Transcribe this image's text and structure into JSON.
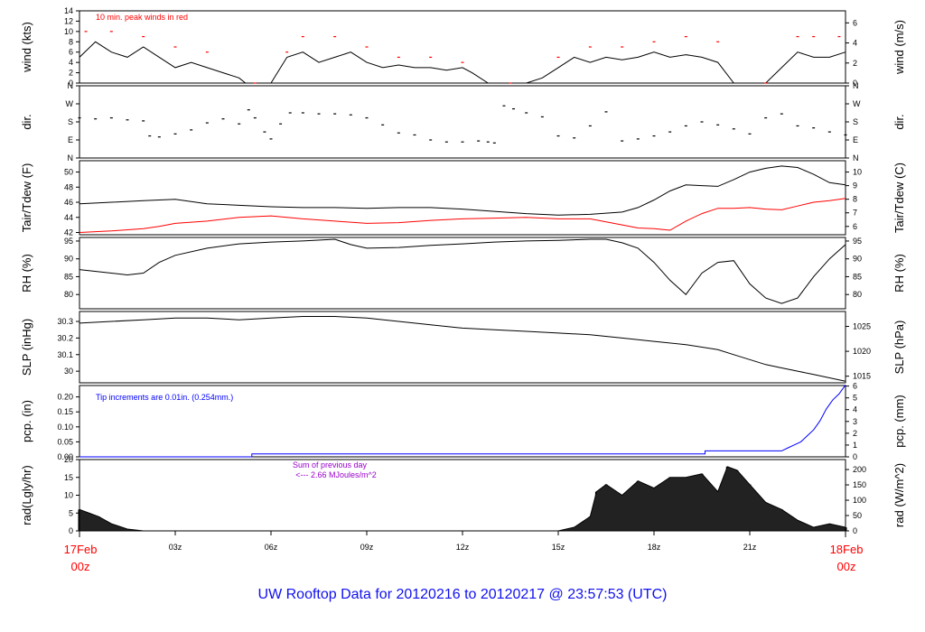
{
  "figure": {
    "title": "UW Rooftop Data for 20120216  to  20120217 @ 23:57:53  (UTC)",
    "colors": {
      "data": "#000000",
      "alt": "#ff0000",
      "precip": "#0000ff",
      "note": "#9900cc",
      "time_label": "#ff0000",
      "title": "#1010ee"
    }
  },
  "chart_data": [
    {
      "id": "wind",
      "type": "line",
      "ylabel_left": "wind (kts)",
      "ylabel_right": "wind (m/s)",
      "ylim": [
        0,
        14
      ],
      "yticks": [
        0,
        2,
        4,
        6,
        8,
        10,
        12,
        14
      ],
      "right_ticks": [
        {
          "v": 0,
          "l": "0"
        },
        {
          "v": 3.888,
          "l": "2"
        },
        {
          "v": 7.776,
          "l": "4"
        },
        {
          "v": 11.664,
          "l": "6"
        }
      ],
      "annotation": "10 min. peak winds in red",
      "series": [
        {
          "name": "wind speed",
          "color": "#000000",
          "x": [
            0,
            0.5,
            1,
            1.5,
            2,
            2.5,
            3,
            3.5,
            4,
            4.5,
            5,
            5.2,
            5.5,
            6,
            6.5,
            7,
            7.5,
            8,
            8.5,
            9,
            9.5,
            10,
            10.5,
            11,
            11.5,
            12,
            12.3,
            12.8,
            13.5,
            14,
            14.5,
            15,
            15.5,
            16,
            16.5,
            17,
            17.5,
            18,
            18.5,
            19,
            19.5,
            20,
            20.5,
            21,
            21.5,
            22,
            22.5,
            23,
            23.5,
            24
          ],
          "y": [
            5,
            8,
            6,
            5,
            7,
            5,
            3,
            4,
            3,
            2,
            1,
            0,
            0,
            0,
            5,
            6,
            4,
            5,
            6,
            4,
            3,
            3.5,
            3,
            3,
            2.5,
            3,
            2,
            0,
            0,
            0,
            1,
            3,
            5,
            4,
            5,
            4.5,
            5,
            6,
            5,
            5.5,
            5,
            4,
            0,
            0,
            0,
            3,
            6,
            5,
            5,
            6
          ]
        },
        {
          "name": "10 min. peak winds",
          "color": "#ff0000",
          "x": [
            0.2,
            1,
            2,
            3,
            4,
            5.5,
            6.5,
            7,
            8,
            9,
            10,
            11,
            12,
            13.5,
            15,
            16,
            17,
            18,
            19,
            20,
            21.5,
            22.5,
            23,
            23.8
          ],
          "y": [
            10,
            10,
            9,
            7,
            6,
            0,
            6,
            9,
            9,
            7,
            5,
            5,
            4,
            0,
            5,
            7,
            7,
            8,
            9,
            8,
            0,
            9,
            9,
            9
          ]
        }
      ]
    },
    {
      "id": "dir",
      "type": "scatter",
      "ylabel_left": "dir.",
      "ylabel_right": "dir.",
      "ylim": [
        0,
        360
      ],
      "yticks_text": [
        {
          "v": 0,
          "l": "N"
        },
        {
          "v": 90,
          "l": "E"
        },
        {
          "v": 180,
          "l": "S"
        },
        {
          "v": 270,
          "l": "W"
        },
        {
          "v": 360,
          "l": "N"
        }
      ],
      "series": [
        {
          "name": "wind direction",
          "color": "#000000",
          "x": [
            0,
            0.5,
            1,
            1.5,
            2,
            2.2,
            2.5,
            3,
            3.5,
            4,
            4.5,
            5,
            5.3,
            5.5,
            5.8,
            6,
            6.3,
            6.6,
            7,
            7.5,
            8,
            8.5,
            9,
            9.5,
            10,
            10.5,
            11,
            11.5,
            12,
            12.5,
            12.8,
            13,
            13.3,
            13.6,
            14,
            14.5,
            15,
            15.5,
            16,
            16.5,
            17,
            17.5,
            18,
            18.5,
            19,
            19.5,
            20,
            20.5,
            21,
            21.5,
            22,
            22.5,
            23,
            23.5,
            24
          ],
          "y": [
            200,
            195,
            200,
            190,
            185,
            110,
            105,
            120,
            140,
            175,
            195,
            170,
            240,
            200,
            130,
            95,
            170,
            225,
            225,
            220,
            220,
            215,
            200,
            165,
            125,
            115,
            90,
            80,
            80,
            85,
            80,
            75,
            260,
            245,
            225,
            205,
            110,
            100,
            160,
            230,
            85,
            95,
            110,
            130,
            160,
            180,
            165,
            145,
            120,
            200,
            220,
            160,
            150,
            130,
            115
          ]
        }
      ]
    },
    {
      "id": "temp",
      "type": "line",
      "ylabel_left": "Tair/Tdew (F)",
      "ylabel_right": "Tair/Tdew (C)",
      "ylim": [
        41.7,
        51.5
      ],
      "yticks": [
        42,
        44,
        46,
        48,
        50
      ],
      "right_ticks": [
        {
          "v": 42.8,
          "l": "6"
        },
        {
          "v": 44.6,
          "l": "7"
        },
        {
          "v": 46.4,
          "l": "8"
        },
        {
          "v": 48.2,
          "l": "9"
        },
        {
          "v": 50,
          "l": "10"
        }
      ],
      "series": [
        {
          "name": "Tair",
          "color": "#000000",
          "x": [
            0,
            1,
            2,
            3,
            4,
            5,
            6,
            7,
            8,
            9,
            10,
            11,
            12,
            13,
            14,
            15,
            16,
            17,
            17.5,
            18,
            18.5,
            19,
            19.5,
            20,
            20.5,
            21,
            21.5,
            22,
            22.5,
            23,
            23.5,
            24
          ],
          "y": [
            45.8,
            46,
            46.2,
            46.4,
            45.8,
            45.6,
            45.4,
            45.3,
            45.3,
            45.2,
            45.3,
            45.3,
            45.1,
            44.8,
            44.5,
            44.3,
            44.4,
            44.7,
            45.3,
            46.3,
            47.5,
            48.3,
            48.2,
            48.1,
            49,
            50,
            50.5,
            50.8,
            50.6,
            49.7,
            48.6,
            48.3
          ]
        },
        {
          "name": "Tdew",
          "color": "#ff0000",
          "x": [
            0,
            1,
            2,
            2.5,
            3,
            4,
            5,
            6,
            7,
            8,
            9,
            10,
            11,
            12,
            13,
            14,
            15,
            16,
            17,
            17.5,
            18,
            18.5,
            19,
            19.5,
            20,
            20.5,
            21,
            21.5,
            22,
            22.5,
            23,
            23.5,
            24
          ],
          "y": [
            42,
            42.2,
            42.5,
            42.8,
            43.2,
            43.5,
            44,
            44.2,
            43.8,
            43.5,
            43.2,
            43.3,
            43.6,
            43.8,
            43.9,
            44,
            43.8,
            43.8,
            43,
            42.6,
            42.5,
            42.3,
            43.5,
            44.5,
            45.2,
            45.2,
            45.3,
            45.1,
            45,
            45.5,
            46,
            46.2,
            46.5
          ]
        }
      ]
    },
    {
      "id": "rh",
      "type": "line",
      "ylabel_left": "RH (%)",
      "ylabel_right": "RH (%)",
      "ylim": [
        76,
        96
      ],
      "yticks": [
        80,
        85,
        90,
        95
      ],
      "right_ticks": [
        {
          "v": 80,
          "l": "80"
        },
        {
          "v": 85,
          "l": "85"
        },
        {
          "v": 90,
          "l": "90"
        },
        {
          "v": 95,
          "l": "95"
        }
      ],
      "series": [
        {
          "name": "RH",
          "color": "#000000",
          "x": [
            0,
            1,
            1.5,
            2,
            2.5,
            3,
            4,
            5,
            6,
            7,
            8,
            8.5,
            9,
            10,
            11,
            12,
            13,
            14,
            15,
            16,
            16.5,
            17,
            17.5,
            18,
            18.5,
            19,
            19.5,
            20,
            20.5,
            21,
            21.5,
            22,
            22.5,
            23,
            23.5,
            24
          ],
          "y": [
            87,
            86,
            85.5,
            86,
            89,
            91,
            93,
            94.2,
            94.7,
            95,
            95.5,
            94,
            93,
            93.2,
            93.8,
            94.2,
            94.7,
            95,
            95.2,
            95.5,
            95.5,
            94.5,
            93,
            89,
            84,
            80,
            86,
            89,
            89.5,
            83,
            79,
            77.5,
            79,
            85,
            90,
            94
          ]
        }
      ]
    },
    {
      "id": "slp",
      "type": "line",
      "ylabel_left": "SLP (inHg)",
      "ylabel_right": "SLP (hPa)",
      "ylim": [
        29.93,
        30.36
      ],
      "yticks": [
        30.0,
        30.1,
        30.2,
        30.3
      ],
      "right_ticks": [
        {
          "v": 29.97,
          "l": "1015"
        },
        {
          "v": 30.12,
          "l": "1020"
        },
        {
          "v": 30.27,
          "l": "1025"
        }
      ],
      "series": [
        {
          "name": "SLP",
          "color": "#000000",
          "x": [
            0,
            1,
            2,
            3,
            4,
            5,
            6,
            7,
            8,
            9,
            10,
            11,
            12,
            13,
            14,
            15,
            16,
            17,
            18,
            19,
            20,
            20.5,
            21,
            21.5,
            22,
            22.5,
            23,
            23.5,
            24
          ],
          "y": [
            30.29,
            30.3,
            30.31,
            30.32,
            30.32,
            30.31,
            30.32,
            30.33,
            30.33,
            30.32,
            30.3,
            30.28,
            30.26,
            30.25,
            30.24,
            30.23,
            30.22,
            30.2,
            30.18,
            30.16,
            30.13,
            30.1,
            30.07,
            30.04,
            30.02,
            30.0,
            29.98,
            29.96,
            29.94
          ]
        }
      ]
    },
    {
      "id": "pcp",
      "type": "line",
      "ylabel_left": "pcp. (in)",
      "ylabel_right": "pcp. (mm)",
      "ylim": [
        0,
        0.238
      ],
      "yticks": [
        0,
        0.05,
        0.1,
        0.15,
        0.2
      ],
      "yticks_text": [
        {
          "v": 0,
          "l": "0.00"
        },
        {
          "v": 0.05,
          "l": "0.05"
        },
        {
          "v": 0.1,
          "l": "0.10"
        },
        {
          "v": 0.15,
          "l": "0.15"
        },
        {
          "v": 0.2,
          "l": "0.20"
        }
      ],
      "right_ticks": [
        {
          "v": 0,
          "l": "0"
        },
        {
          "v": 0.03937,
          "l": "1"
        },
        {
          "v": 0.07874,
          "l": "2"
        },
        {
          "v": 0.11811,
          "l": "3"
        },
        {
          "v": 0.15748,
          "l": "4"
        },
        {
          "v": 0.19685,
          "l": "5"
        },
        {
          "v": 0.23622,
          "l": "6"
        }
      ],
      "annotation": "Tip increments are 0.01in. (0.254mm.)",
      "series": [
        {
          "name": "precipitation",
          "color": "#0000ff",
          "x": [
            0,
            5.4,
            5.4,
            19.6,
            19.6,
            22,
            22.2,
            22.4,
            22.6,
            22.8,
            23,
            23.2,
            23.4,
            23.6,
            23.8,
            24
          ],
          "y": [
            0,
            0,
            0.01,
            0.01,
            0.02,
            0.02,
            0.03,
            0.04,
            0.05,
            0.07,
            0.09,
            0.12,
            0.16,
            0.19,
            0.21,
            0.24
          ]
        }
      ]
    },
    {
      "id": "rad",
      "type": "area",
      "ylabel_left": "rad(Lgly/hr)",
      "ylabel_right": "rad (W/m^2)",
      "ylim": [
        0,
        20
      ],
      "yticks": [
        0,
        5,
        10,
        15,
        20
      ],
      "right_ticks": [
        {
          "v": 0,
          "l": "0"
        },
        {
          "v": 4.3,
          "l": "50"
        },
        {
          "v": 8.6,
          "l": "100"
        },
        {
          "v": 12.9,
          "l": "150"
        },
        {
          "v": 17.2,
          "l": "200"
        }
      ],
      "annotation": "Sum of previous day",
      "annotation2": "<--- 2.66 MJoules/m^2",
      "series": [
        {
          "name": "radiation",
          "color": "#000000",
          "x": [
            0,
            0.3,
            0.6,
            1,
            1.5,
            2,
            15,
            15.5,
            16,
            16.2,
            16.5,
            17,
            17.5,
            18,
            18.5,
            19,
            19.5,
            20,
            20.3,
            20.6,
            21,
            21.5,
            22,
            22.5,
            23,
            23.5,
            24
          ],
          "y": [
            6,
            5,
            4,
            2,
            0.5,
            0,
            0,
            1,
            4,
            11,
            13,
            10,
            14,
            12,
            15,
            15,
            16,
            11,
            18,
            17,
            13,
            8,
            6,
            3,
            1,
            2,
            1
          ]
        }
      ]
    }
  ],
  "time_axis": {
    "xlim": [
      0,
      24
    ],
    "ticks": [
      {
        "v": 3,
        "l": "03z"
      },
      {
        "v": 6,
        "l": "06z"
      },
      {
        "v": 9,
        "l": "09z"
      },
      {
        "v": 12,
        "l": "12z"
      },
      {
        "v": 15,
        "l": "15z"
      },
      {
        "v": 18,
        "l": "18z"
      },
      {
        "v": 21,
        "l": "21z"
      }
    ],
    "start_label": [
      "17Feb",
      "00z"
    ],
    "end_label": [
      "18Feb",
      "00z"
    ]
  }
}
